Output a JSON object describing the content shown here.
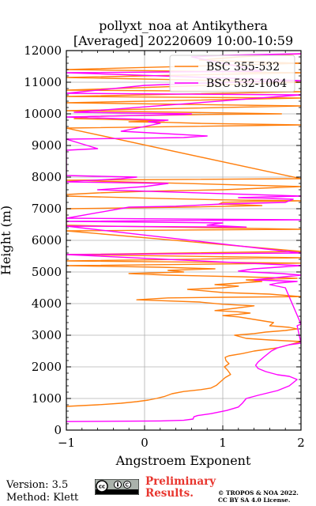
{
  "header": {
    "title_line1": "pollyxt_noa at Antikythera",
    "title_line2": "[Averaged] 20220609 10:00-10:59"
  },
  "footer": {
    "version": "Version: 3.5",
    "method": "Method: Klett",
    "preliminary_line1": "Preliminary",
    "preliminary_line2": "Results.",
    "copyright_line1": "© TROPOS & NOA 2022.",
    "copyright_line2": "CC BY SA 4.0 License.",
    "license_badge": "cc-by-sa-badge",
    "preliminary_color": "#e8352e"
  },
  "chart_data": {
    "type": "line",
    "xlabel": "Angstroem Exponent",
    "ylabel": "Height (m)",
    "xlim": [
      -1,
      2
    ],
    "ylim": [
      0,
      12000
    ],
    "xticks": [
      -1,
      0,
      1,
      2
    ],
    "yticks": [
      0,
      1000,
      2000,
      3000,
      4000,
      5000,
      6000,
      7000,
      8000,
      9000,
      10000,
      11000,
      12000
    ],
    "grid": true,
    "legend_position": "top-right",
    "series": [
      {
        "name": "BSC 355-532",
        "color": "#ff7f0e",
        "points": [
          [
            -1.0,
            750
          ],
          [
            -0.6,
            800
          ],
          [
            -0.3,
            850
          ],
          [
            -0.1,
            900
          ],
          [
            0.05,
            950
          ],
          [
            0.15,
            1000
          ],
          [
            0.25,
            1060
          ],
          [
            0.35,
            1150
          ],
          [
            0.5,
            1220
          ],
          [
            0.72,
            1280
          ],
          [
            0.85,
            1330
          ],
          [
            0.92,
            1420
          ],
          [
            0.98,
            1550
          ],
          [
            1.03,
            1660
          ],
          [
            1.1,
            1760
          ],
          [
            1.06,
            1900
          ],
          [
            1.02,
            2000
          ],
          [
            1.08,
            2100
          ],
          [
            1.04,
            2200
          ],
          [
            1.03,
            2300
          ],
          [
            1.08,
            2350
          ],
          [
            1.25,
            2420
          ],
          [
            1.4,
            2500
          ],
          [
            1.55,
            2550
          ],
          [
            1.7,
            2600
          ],
          [
            1.85,
            2700
          ],
          [
            2.0,
            2800
          ],
          [
            1.6,
            2850
          ],
          [
            1.3,
            2900
          ],
          [
            1.15,
            3000
          ],
          [
            1.4,
            3050
          ],
          [
            1.55,
            3100
          ],
          [
            1.8,
            3150
          ],
          [
            1.95,
            3200
          ],
          [
            1.85,
            3250
          ],
          [
            1.6,
            3300
          ],
          [
            1.65,
            3400
          ],
          [
            1.4,
            3500
          ],
          [
            1.2,
            3580
          ],
          [
            1.0,
            3620
          ],
          [
            1.2,
            3660
          ],
          [
            1.35,
            3700
          ],
          [
            1.2,
            3740
          ],
          [
            0.9,
            3780
          ],
          [
            1.15,
            3850
          ],
          [
            1.4,
            3930
          ],
          [
            1.0,
            3980
          ],
          [
            0.7,
            4050
          ],
          [
            -0.1,
            4120
          ],
          [
            0.3,
            4180
          ],
          [
            1.0,
            4200
          ],
          [
            2.0,
            4220
          ],
          [
            1.6,
            4300
          ],
          [
            1.0,
            4350
          ],
          [
            0.55,
            4450
          ],
          [
            1.0,
            4500
          ],
          [
            1.2,
            4550
          ],
          [
            0.9,
            4600
          ],
          [
            1.5,
            4700
          ],
          [
            1.3,
            4750
          ],
          [
            1.95,
            4800
          ],
          [
            1.2,
            4850
          ],
          [
            0.3,
            4900
          ],
          [
            -0.2,
            4950
          ],
          [
            0.5,
            5000
          ],
          [
            0.3,
            5050
          ],
          [
            0.9,
            5100
          ],
          [
            0.2,
            5150
          ],
          [
            -1.0,
            5200
          ],
          [
            2.0,
            5280
          ],
          [
            -1.0,
            5350
          ],
          [
            2.0,
            5450
          ],
          [
            -1.0,
            5550
          ],
          [
            2.0,
            5650
          ],
          [
            -1.0,
            6300
          ],
          [
            2.0,
            6350
          ],
          [
            0.8,
            6400
          ],
          [
            0.3,
            6420
          ],
          [
            -0.5,
            6450
          ],
          [
            -1.0,
            6480
          ],
          [
            -1.0,
            7000
          ],
          [
            0.5,
            7050
          ],
          [
            1.5,
            7100
          ],
          [
            0.95,
            7150
          ],
          [
            1.0,
            7200
          ],
          [
            1.4,
            7230
          ],
          [
            2.0,
            7250
          ],
          [
            1.0,
            7280
          ],
          [
            0.1,
            7330
          ],
          [
            -1.0,
            7400
          ],
          [
            -1.0,
            7450
          ],
          [
            -0.6,
            7500
          ],
          [
            0.0,
            7550
          ],
          [
            1.0,
            7600
          ],
          [
            2.0,
            7700
          ],
          [
            -1.0,
            7900
          ],
          [
            2.0,
            7950
          ],
          [
            -1.0,
            9550
          ],
          [
            2.0,
            9650
          ],
          [
            0.7,
            9700
          ],
          [
            0.3,
            9730
          ],
          [
            -0.2,
            9750
          ],
          [
            0.25,
            9780
          ],
          [
            -0.9,
            9850
          ],
          [
            -0.7,
            9920
          ],
          [
            0.8,
            9980
          ],
          [
            1.75,
            10000
          ],
          [
            0.5,
            10050
          ],
          [
            -1.0,
            10100
          ],
          [
            2.0,
            10250
          ],
          [
            0.5,
            10300
          ],
          [
            -1.0,
            10350
          ],
          [
            2.0,
            10500
          ],
          [
            -1.0,
            10550
          ],
          [
            2.0,
            10700
          ],
          [
            -1.0,
            10750
          ],
          [
            2.0,
            11000
          ],
          [
            1.0,
            11050
          ],
          [
            -1.0,
            11150
          ],
          [
            2.0,
            11300
          ],
          [
            -1.0,
            11400
          ],
          [
            2.0,
            11600
          ],
          [
            0.7,
            11700
          ],
          [
            1.2,
            11800
          ],
          [
            2.0,
            11900
          ]
        ]
      },
      {
        "name": "BSC 532-1064",
        "color": "#ff00ff",
        "points": [
          [
            -1.0,
            270
          ],
          [
            -0.4,
            280
          ],
          [
            0.2,
            290
          ],
          [
            0.5,
            310
          ],
          [
            0.62,
            350
          ],
          [
            0.63,
            420
          ],
          [
            0.68,
            460
          ],
          [
            0.85,
            520
          ],
          [
            1.05,
            620
          ],
          [
            1.2,
            730
          ],
          [
            1.25,
            850
          ],
          [
            1.3,
            1000
          ],
          [
            1.45,
            1100
          ],
          [
            1.7,
            1250
          ],
          [
            1.85,
            1400
          ],
          [
            1.95,
            1600
          ],
          [
            1.85,
            1700
          ],
          [
            1.7,
            1750
          ],
          [
            1.55,
            1850
          ],
          [
            1.45,
            1950
          ],
          [
            1.42,
            2050
          ],
          [
            1.45,
            2150
          ],
          [
            1.52,
            2300
          ],
          [
            1.62,
            2500
          ],
          [
            1.7,
            2600
          ],
          [
            1.85,
            2700
          ],
          [
            2.0,
            2750
          ],
          [
            1.95,
            3300
          ],
          [
            2.0,
            3350
          ],
          [
            1.8,
            4500
          ],
          [
            1.6,
            4600
          ],
          [
            1.7,
            4650
          ],
          [
            1.95,
            4700
          ],
          [
            1.4,
            4750
          ],
          [
            1.6,
            4800
          ],
          [
            2.0,
            4900
          ],
          [
            1.75,
            4950
          ],
          [
            1.35,
            5000
          ],
          [
            1.2,
            5030
          ],
          [
            1.4,
            5100
          ],
          [
            2.0,
            5200
          ],
          [
            -1.0,
            5550
          ],
          [
            2.0,
            5600
          ],
          [
            -1.0,
            6450
          ],
          [
            0.5,
            6430
          ],
          [
            1.3,
            6420
          ],
          [
            0.8,
            6480
          ],
          [
            1.0,
            6550
          ],
          [
            -1.0,
            6600
          ],
          [
            2.0,
            6650
          ],
          [
            -1.0,
            6700
          ],
          [
            -0.2,
            7050
          ],
          [
            0.4,
            7080
          ],
          [
            1.0,
            7150
          ],
          [
            1.8,
            7200
          ],
          [
            1.9,
            7300
          ],
          [
            1.2,
            7350
          ],
          [
            2.0,
            7400
          ],
          [
            -0.6,
            7600
          ],
          [
            0.0,
            7700
          ],
          [
            0.3,
            7800
          ],
          [
            -1.0,
            7850
          ],
          [
            -0.3,
            7950
          ],
          [
            -0.1,
            8000
          ],
          [
            -1.0,
            8050
          ],
          [
            -1.0,
            8850
          ],
          [
            -0.6,
            8900
          ],
          [
            -1.0,
            9200
          ],
          [
            0.5,
            9250
          ],
          [
            0.8,
            9300
          ],
          [
            -0.3,
            9450
          ],
          [
            0.2,
            9700
          ],
          [
            0.05,
            9750
          ],
          [
            0.3,
            9800
          ],
          [
            -1.0,
            9900
          ],
          [
            0.5,
            9980
          ],
          [
            0.6,
            10000
          ],
          [
            -0.9,
            10050
          ],
          [
            2.0,
            10600
          ],
          [
            -1.0,
            10650
          ],
          [
            0.0,
            10900
          ],
          [
            0.5,
            10950
          ],
          [
            1.2,
            11000
          ],
          [
            2.0,
            11050
          ],
          [
            -1.0,
            11300
          ],
          [
            1.5,
            11350
          ],
          [
            0.6,
            11800
          ],
          [
            1.0,
            11850
          ],
          [
            2.0,
            11900
          ]
        ]
      }
    ]
  }
}
